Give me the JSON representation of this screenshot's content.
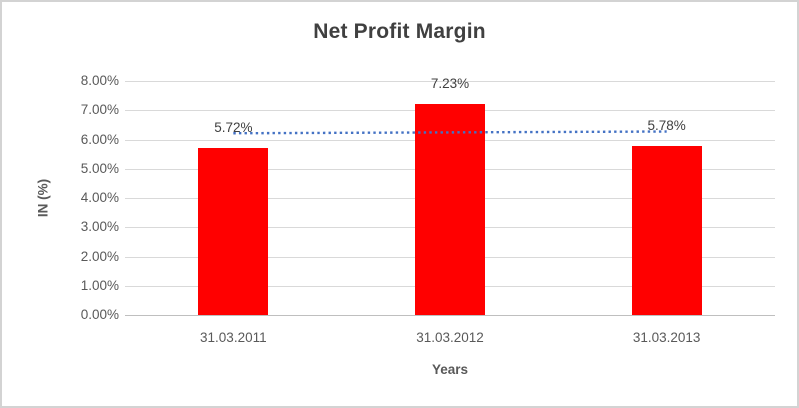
{
  "chart_data": {
    "type": "bar",
    "title": "Net Profit Margin",
    "categories": [
      "31.03.2011",
      "31.03.2012",
      "31.03.2013"
    ],
    "values": [
      5.72,
      7.23,
      5.78
    ],
    "data_labels": [
      "5.72%",
      "7.23%",
      "5.78%"
    ],
    "xlabel": "Years",
    "ylabel": "IN (%)",
    "ylim": [
      0,
      8
    ],
    "ytick_step": 1,
    "ytick_labels": [
      "0.00%",
      "1.00%",
      "2.00%",
      "3.00%",
      "4.00%",
      "5.00%",
      "6.00%",
      "7.00%",
      "8.00%"
    ],
    "grid": true,
    "legend": false,
    "trendline": {
      "type": "linear",
      "style": "dotted"
    },
    "colors": {
      "bar": "#FF0000",
      "trendline": "#4472C4",
      "title_text": "#404040",
      "data_label_text": "#404040",
      "axis_text": "#595959",
      "gridline": "#D9D9D9",
      "axis_line": "#BFBFBF",
      "chart_border": "#D3D3D3"
    }
  }
}
